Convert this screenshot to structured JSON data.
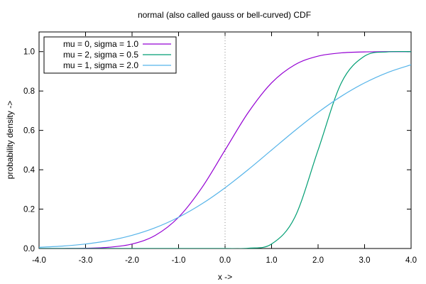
{
  "chart_data": {
    "type": "line",
    "title": "normal (also called gauss or bell-curved) CDF",
    "xlabel": "x ->",
    "ylabel": "probability density ->",
    "xlim": [
      -4.0,
      4.0
    ],
    "ylim": [
      0.0,
      1.1
    ],
    "x_ticks": [
      -4.0,
      -3.0,
      -2.0,
      -1.0,
      0.0,
      1.0,
      2.0,
      3.0,
      4.0
    ],
    "x_tick_labels": [
      "-4.0",
      "-3.0",
      "-2.0",
      "-1.0",
      "0.0",
      "1.0",
      "2.0",
      "3.0",
      "4.0"
    ],
    "y_ticks": [
      0.0,
      0.2,
      0.4,
      0.6,
      0.8,
      1.0
    ],
    "y_tick_labels": [
      "0.0",
      "0.2",
      "0.4",
      "0.6",
      "0.8",
      "1.0"
    ],
    "grid": false,
    "reference_line": {
      "axis": "x",
      "value": 0.0,
      "style": "dotted"
    },
    "legend": {
      "placement": "top-left"
    },
    "x": [
      -4.0,
      -3.5,
      -3.0,
      -2.5,
      -2.0,
      -1.5,
      -1.0,
      -0.5,
      0.0,
      0.5,
      1.0,
      1.5,
      2.0,
      2.5,
      3.0,
      3.5,
      4.0
    ],
    "series": [
      {
        "name": "mu = 0, sigma = 1.0",
        "color": "#9400d3",
        "values": [
          0.0,
          0.0002,
          0.0013,
          0.0062,
          0.0228,
          0.0668,
          0.1587,
          0.3085,
          0.5,
          0.6915,
          0.8413,
          0.9332,
          0.9772,
          0.9938,
          0.9987,
          0.9998,
          1.0
        ]
      },
      {
        "name": "mu = 2, sigma = 0.5",
        "color": "#009e73",
        "values": [
          0.0,
          0.0,
          0.0,
          0.0,
          0.0,
          0.0,
          0.0,
          0.0,
          0.0,
          0.0013,
          0.0228,
          0.1587,
          0.5,
          0.8413,
          0.9772,
          0.9987,
          1.0
        ]
      },
      {
        "name": "mu = 1, sigma = 2.0",
        "color": "#56b4e9",
        "values": [
          0.0062,
          0.0122,
          0.0228,
          0.0401,
          0.0668,
          0.1056,
          0.1587,
          0.2266,
          0.3085,
          0.4013,
          0.5,
          0.5987,
          0.6915,
          0.7734,
          0.8413,
          0.8944,
          0.9332
        ]
      }
    ]
  }
}
